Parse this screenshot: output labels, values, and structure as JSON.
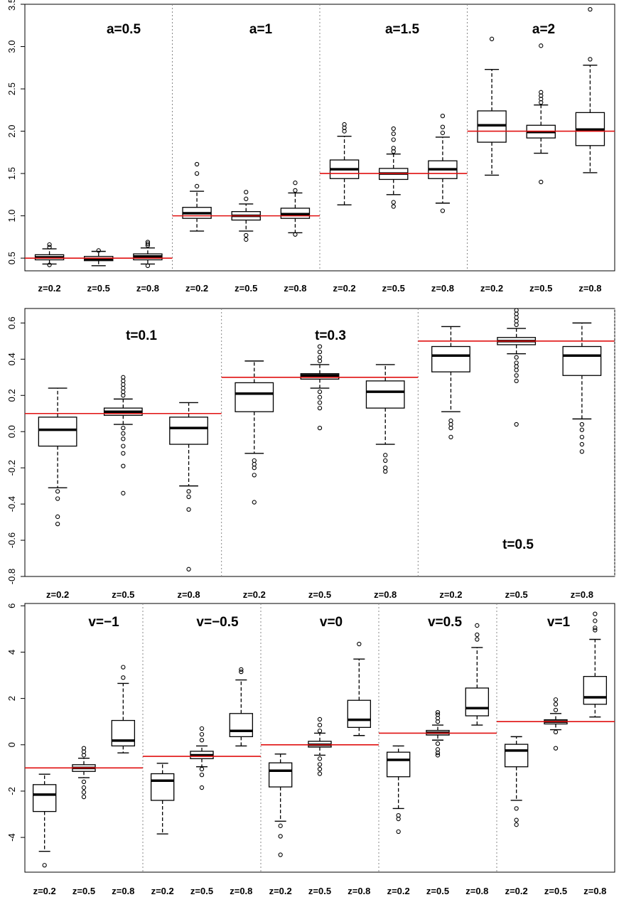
{
  "chart_data": [
    {
      "type": "boxplot",
      "id": "a",
      "ylim": [
        0.35,
        3.5
      ],
      "yticks": [
        0.5,
        1.0,
        1.5,
        2.0,
        2.5,
        3.0,
        3.5
      ],
      "ytick_labels": [
        "0.5",
        "1.0",
        "1.5",
        "2.0",
        "2.5",
        "3.0",
        "3.5"
      ],
      "categories": [
        "z=0.2",
        "z=0.5",
        "z=0.8"
      ],
      "groups": [
        {
          "label": "a=0.5",
          "true_value": 0.5,
          "boxes": [
            {
              "category": "z=0.2",
              "q1": 0.48,
              "median": 0.51,
              "q3": 0.54,
              "whisker_low": 0.43,
              "whisker_high": 0.61,
              "outliers": [
                0.63,
                0.66,
                0.42
              ]
            },
            {
              "category": "z=0.5",
              "q1": 0.47,
              "median": 0.49,
              "q3": 0.52,
              "whisker_low": 0.41,
              "whisker_high": 0.58,
              "outliers": [
                0.59
              ]
            },
            {
              "category": "z=0.8",
              "q1": 0.48,
              "median": 0.52,
              "q3": 0.55,
              "whisker_low": 0.43,
              "whisker_high": 0.62,
              "outliers": [
                0.65,
                0.67,
                0.69,
                0.41
              ]
            }
          ]
        },
        {
          "label": "a=1",
          "true_value": 1.0,
          "boxes": [
            {
              "category": "z=0.2",
              "q1": 0.97,
              "median": 1.03,
              "q3": 1.1,
              "whisker_low": 0.82,
              "whisker_high": 1.29,
              "outliers": [
                1.35,
                1.5,
                1.61
              ]
            },
            {
              "category": "z=0.5",
              "q1": 0.95,
              "median": 1.0,
              "q3": 1.05,
              "whisker_low": 0.82,
              "whisker_high": 1.14,
              "outliers": [
                1.2,
                1.28,
                0.77,
                0.72
              ]
            },
            {
              "category": "z=0.8",
              "q1": 0.97,
              "median": 1.02,
              "q3": 1.09,
              "whisker_low": 0.8,
              "whisker_high": 1.27,
              "outliers": [
                1.3,
                1.39,
                0.78
              ]
            }
          ]
        },
        {
          "label": "a=1.5",
          "true_value": 1.5,
          "boxes": [
            {
              "category": "z=0.2",
              "q1": 1.44,
              "median": 1.55,
              "q3": 1.66,
              "whisker_low": 1.13,
              "whisker_high": 1.94,
              "outliers": [
                2.0,
                2.04,
                2.08
              ]
            },
            {
              "category": "z=0.5",
              "q1": 1.43,
              "median": 1.5,
              "q3": 1.56,
              "whisker_low": 1.25,
              "whisker_high": 1.73,
              "outliers": [
                1.76,
                1.8,
                1.9,
                1.97,
                2.03,
                1.16,
                1.11
              ]
            },
            {
              "category": "z=0.8",
              "q1": 1.44,
              "median": 1.55,
              "q3": 1.65,
              "whisker_low": 1.15,
              "whisker_high": 1.93,
              "outliers": [
                1.98,
                2.05,
                2.18,
                1.06
              ]
            }
          ]
        },
        {
          "label": "a=2",
          "true_value": 2.0,
          "boxes": [
            {
              "category": "z=0.2",
              "q1": 1.87,
              "median": 2.07,
              "q3": 2.24,
              "whisker_low": 1.48,
              "whisker_high": 2.73,
              "outliers": [
                3.09
              ]
            },
            {
              "category": "z=0.5",
              "q1": 1.92,
              "median": 1.99,
              "q3": 2.07,
              "whisker_low": 1.74,
              "whisker_high": 2.31,
              "outliers": [
                2.34,
                2.38,
                2.42,
                2.46,
                3.01,
                1.4
              ]
            },
            {
              "category": "z=0.8",
              "q1": 1.83,
              "median": 2.02,
              "q3": 2.22,
              "whisker_low": 1.51,
              "whisker_high": 2.78,
              "outliers": [
                2.85,
                3.44
              ]
            }
          ]
        }
      ]
    },
    {
      "type": "boxplot",
      "id": "t",
      "ylim": [
        -0.8,
        0.68
      ],
      "yticks": [
        -0.8,
        -0.6,
        -0.4,
        -0.2,
        0.0,
        0.2,
        0.4,
        0.6
      ],
      "ytick_labels": [
        "-0.8",
        "-0.6",
        "-0.4",
        "-0.2",
        "0.0",
        "0.2",
        "0.4",
        "0.6"
      ],
      "categories": [
        "z=0.2",
        "z=0.5",
        "z=0.8"
      ],
      "groups": [
        {
          "label": "t=0.1",
          "true_value": 0.1,
          "boxes": [
            {
              "category": "z=0.2",
              "q1": -0.08,
              "median": 0.01,
              "q3": 0.08,
              "whisker_low": -0.31,
              "whisker_high": 0.24,
              "outliers": [
                -0.33,
                -0.37,
                -0.47,
                -0.51
              ]
            },
            {
              "category": "z=0.5",
              "q1": 0.09,
              "median": 0.11,
              "q3": 0.13,
              "whisker_low": 0.04,
              "whisker_high": 0.18,
              "outliers": [
                0.2,
                0.22,
                0.24,
                0.26,
                0.28,
                0.3,
                0.02,
                -0.01,
                -0.04,
                -0.08,
                -0.12,
                -0.19,
                -0.34
              ]
            },
            {
              "category": "z=0.8",
              "q1": -0.07,
              "median": 0.02,
              "q3": 0.08,
              "whisker_low": -0.3,
              "whisker_high": 0.16,
              "outliers": [
                -0.33,
                -0.36,
                -0.43,
                -0.76
              ]
            }
          ]
        },
        {
          "label": "t=0.3",
          "true_value": 0.3,
          "boxes": [
            {
              "category": "z=0.2",
              "q1": 0.11,
              "median": 0.21,
              "q3": 0.27,
              "whisker_low": -0.12,
              "whisker_high": 0.39,
              "outliers": [
                -0.16,
                -0.18,
                -0.2,
                -0.24,
                -0.39
              ]
            },
            {
              "category": "z=0.5",
              "q1": 0.29,
              "median": 0.31,
              "q3": 0.32,
              "whisker_low": 0.24,
              "whisker_high": 0.37,
              "outliers": [
                0.39,
                0.41,
                0.44,
                0.47,
                0.22,
                0.19,
                0.16,
                0.13,
                0.02
              ]
            },
            {
              "category": "z=0.8",
              "q1": 0.13,
              "median": 0.22,
              "q3": 0.28,
              "whisker_low": -0.07,
              "whisker_high": 0.37,
              "outliers": [
                -0.13,
                -0.16,
                -0.2,
                -0.22
              ]
            }
          ]
        },
        {
          "label": "t=0.5",
          "true_value": 0.5,
          "boxes": [
            {
              "category": "z=0.2",
              "q1": 0.33,
              "median": 0.42,
              "q3": 0.47,
              "whisker_low": 0.11,
              "whisker_high": 0.58,
              "outliers": [
                0.06,
                0.04,
                0.02,
                -0.03
              ]
            },
            {
              "category": "z=0.5",
              "q1": 0.48,
              "median": 0.5,
              "q3": 0.52,
              "whisker_low": 0.43,
              "whisker_high": 0.57,
              "outliers": [
                0.59,
                0.61,
                0.63,
                0.65,
                0.67,
                0.41,
                0.38,
                0.36,
                0.34,
                0.31,
                0.28,
                0.04
              ]
            },
            {
              "category": "z=0.8",
              "q1": 0.31,
              "median": 0.42,
              "q3": 0.47,
              "whisker_low": 0.07,
              "whisker_high": 0.6,
              "outliers": [
                0.04,
                0.01,
                -0.03,
                -0.07,
                -0.11
              ]
            }
          ]
        }
      ]
    },
    {
      "type": "boxplot",
      "id": "v",
      "ylim": [
        -5.5,
        6.1
      ],
      "yticks": [
        -4,
        -2,
        0,
        2,
        4,
        6
      ],
      "ytick_labels": [
        "-4",
        "-2",
        "0",
        "2",
        "4",
        "6"
      ],
      "categories": [
        "z=0.2",
        "z=0.5",
        "z=0.8"
      ],
      "groups": [
        {
          "label": "v=−1",
          "true_value": -1,
          "boxes": [
            {
              "category": "z=0.2",
              "q1": -2.88,
              "median": -2.15,
              "q3": -1.72,
              "whisker_low": -4.6,
              "whisker_high": -1.27,
              "outliers": [
                -5.2
              ]
            },
            {
              "category": "z=0.5",
              "q1": -1.15,
              "median": -1.0,
              "q3": -0.86,
              "whisker_low": -1.42,
              "whisker_high": -0.58,
              "outliers": [
                -0.45,
                -0.3,
                -0.15,
                -1.6,
                -1.85,
                -2.05,
                -2.25
              ]
            },
            {
              "category": "z=0.8",
              "q1": -0.05,
              "median": 0.18,
              "q3": 1.05,
              "whisker_low": -0.35,
              "whisker_high": 2.65,
              "outliers": [
                2.9,
                3.35
              ]
            }
          ]
        },
        {
          "label": "v=−0.5",
          "true_value": -0.5,
          "boxes": [
            {
              "category": "z=0.2",
              "q1": -2.4,
              "median": -1.55,
              "q3": -1.25,
              "whisker_low": -3.85,
              "whisker_high": -0.8,
              "outliers": []
            },
            {
              "category": "z=0.5",
              "q1": -0.6,
              "median": -0.45,
              "q3": -0.28,
              "whisker_low": -0.95,
              "whisker_high": -0.05,
              "outliers": [
                0.2,
                0.45,
                0.7,
                -1.05,
                -1.3,
                -1.85
              ]
            },
            {
              "category": "z=0.8",
              "q1": 0.35,
              "median": 0.6,
              "q3": 1.35,
              "whisker_low": -0.05,
              "whisker_high": 2.8,
              "outliers": [
                3.15,
                3.25
              ]
            }
          ]
        },
        {
          "label": "v=0",
          "true_value": 0,
          "boxes": [
            {
              "category": "z=0.2",
              "q1": -1.82,
              "median": -1.12,
              "q3": -0.78,
              "whisker_low": -3.3,
              "whisker_high": -0.4,
              "outliers": [
                -3.5,
                -3.95,
                -4.75
              ]
            },
            {
              "category": "z=0.5",
              "q1": -0.1,
              "median": 0.0,
              "q3": 0.15,
              "whisker_low": -0.45,
              "whisker_high": 0.5,
              "outliers": [
                0.6,
                0.85,
                1.1,
                -0.6,
                -0.85,
                -1.05,
                -1.25
              ]
            },
            {
              "category": "z=0.8",
              "q1": 0.75,
              "median": 1.08,
              "q3": 1.92,
              "whisker_low": 0.4,
              "whisker_high": 3.7,
              "outliers": [
                4.35
              ]
            }
          ]
        },
        {
          "label": "v=0.5",
          "true_value": 0.5,
          "boxes": [
            {
              "category": "z=0.2",
              "q1": -1.38,
              "median": -0.65,
              "q3": -0.32,
              "whisker_low": -2.75,
              "whisker_high": -0.05,
              "outliers": [
                -3.05,
                -3.2,
                -3.75
              ]
            },
            {
              "category": "z=0.5",
              "q1": 0.42,
              "median": 0.52,
              "q3": 0.62,
              "whisker_low": 0.2,
              "whisker_high": 0.85,
              "outliers": [
                1.0,
                1.15,
                1.3,
                1.4,
                0.05,
                -0.2,
                -0.35,
                -0.45
              ]
            },
            {
              "category": "z=0.8",
              "q1": 1.25,
              "median": 1.58,
              "q3": 2.45,
              "whisker_low": 0.85,
              "whisker_high": 4.2,
              "outliers": [
                4.55,
                4.75,
                5.15
              ]
            }
          ]
        },
        {
          "label": "v=1",
          "true_value": 1,
          "boxes": [
            {
              "category": "z=0.2",
              "q1": -0.95,
              "median": -0.25,
              "q3": 0.02,
              "whisker_low": -2.4,
              "whisker_high": 0.35,
              "outliers": [
                -2.75,
                -3.25,
                -3.45
              ]
            },
            {
              "category": "z=0.5",
              "q1": 0.9,
              "median": 1.0,
              "q3": 1.08,
              "whisker_low": 0.65,
              "whisker_high": 1.35,
              "outliers": [
                1.5,
                1.75,
                1.95,
                0.55,
                -0.15
              ]
            },
            {
              "category": "z=0.8",
              "q1": 1.75,
              "median": 2.05,
              "q3": 2.95,
              "whisker_low": 1.2,
              "whisker_high": 4.55,
              "outliers": [
                4.95,
                5.05,
                5.35,
                5.65
              ]
            }
          ]
        }
      ]
    }
  ],
  "colors": {
    "reference_line": "#e01010",
    "box": "#000000",
    "separator": "#888888"
  }
}
